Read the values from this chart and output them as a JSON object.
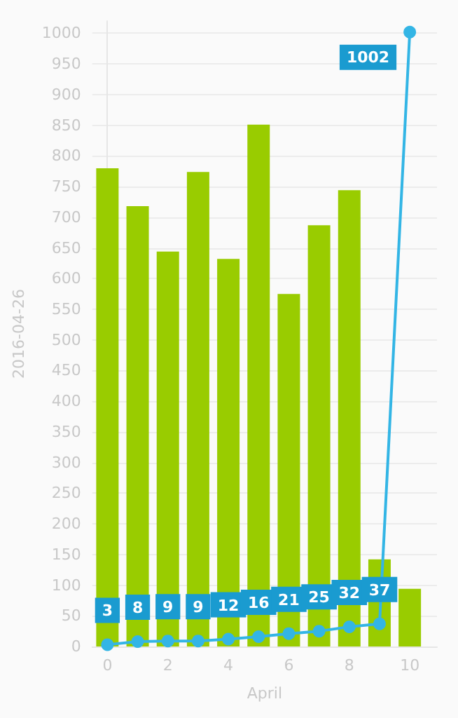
{
  "chart_data": {
    "type": "bar",
    "xlabel": "April",
    "ylabel": "2016-04-26",
    "x": [
      0,
      1,
      2,
      3,
      4,
      5,
      6,
      7,
      8,
      9,
      10
    ],
    "series": [
      {
        "color": "#99cc00",
        "values": [
          780,
          718,
          644,
          774,
          632,
          851,
          575,
          687,
          744,
          142,
          94
        ]
      },
      {
        "type": "line",
        "color": "#33b5e5",
        "values": [
          3,
          8,
          9,
          9,
          12,
          16,
          21,
          25,
          32,
          37,
          1002
        ],
        "value_labels": [
          "3",
          "8",
          "9",
          "9",
          "12",
          "16",
          "21",
          "25",
          "32",
          "37",
          "1002"
        ]
      }
    ],
    "xlim": [
      -0.5,
      10.9
    ],
    "xticks": [
      0,
      2,
      4,
      6,
      8,
      10
    ],
    "ylim": [
      0,
      1020
    ],
    "yticks": [
      0,
      50,
      100,
      150,
      200,
      250,
      300,
      350,
      400,
      450,
      500,
      550,
      600,
      650,
      700,
      750,
      800,
      850,
      900,
      950,
      1000
    ],
    "grid": "y",
    "marker": "circle",
    "line_style": "solid"
  }
}
